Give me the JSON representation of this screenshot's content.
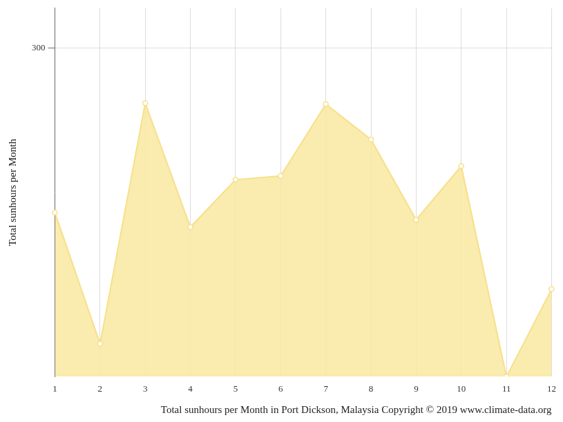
{
  "chart_data": {
    "type": "area",
    "title": "Total sunhours per Month in Port Dickson, Malaysia Copyright © 2019 www.climate-data.org",
    "y_label": "Total sunhours per Month",
    "categories": [
      "1",
      "2",
      "3",
      "4",
      "5",
      "6",
      "7",
      "8",
      "9",
      "10",
      "11",
      "12"
    ],
    "values": [
      255,
      219,
      285,
      251,
      264,
      265,
      284.7,
      275,
      253,
      267.7,
      210,
      234
    ],
    "color": "#f7e08a",
    "ylim": [
      210,
      311
    ],
    "yticks": [
      300
    ],
    "grid": true,
    "marker": "circle"
  }
}
